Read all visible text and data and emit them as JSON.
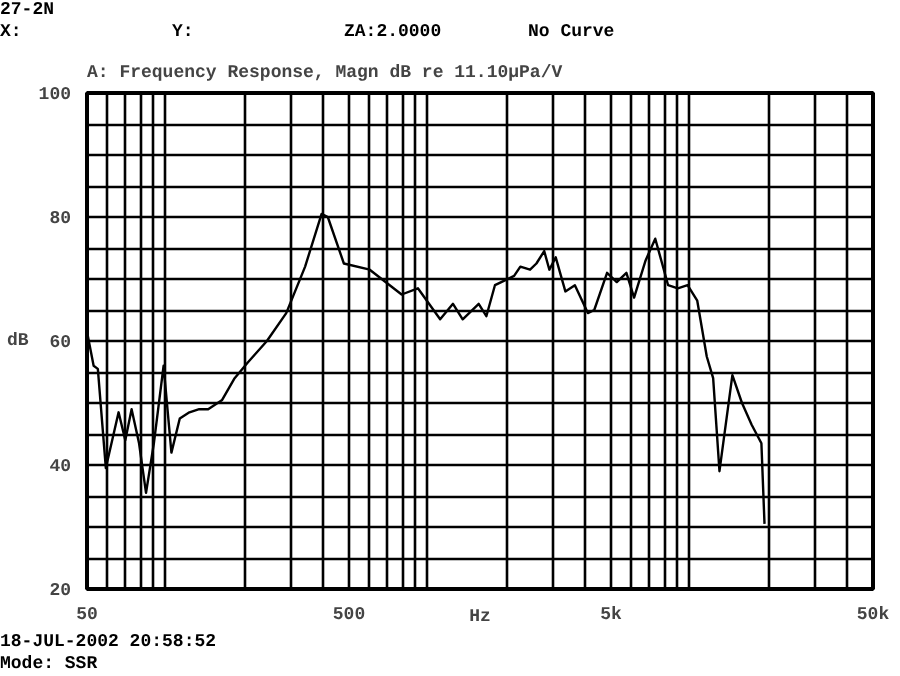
{
  "chart_data": {
    "type": "line",
    "title": "A: Frequency Response, Magn dB re 11.10μPa/V",
    "xlabel": "Hz",
    "ylabel": "dB",
    "annotations": [
      "27-2N",
      "X:",
      "Y:",
      "ZA:2.0000",
      "No Curve",
      "18-JUL-2002 20:58:52",
      "Mode: SSR"
    ],
    "log": "x",
    "grid": true,
    "marker": "none",
    "line_style": "solid",
    "xlim": [
      50,
      50000
    ],
    "ylim": [
      20,
      100
    ],
    "xticks": [
      50,
      {
        "value": 60,
        "label": null
      },
      {
        "value": 70,
        "label": null
      },
      {
        "value": 80,
        "label": null
      },
      {
        "value": 90,
        "label": null
      },
      {
        "value": 100,
        "label": null
      },
      {
        "value": 200,
        "label": null
      },
      {
        "value": 300,
        "label": null
      },
      {
        "value": 400,
        "label": null
      },
      500,
      {
        "value": 600,
        "label": null
      },
      {
        "value": 700,
        "label": null
      },
      {
        "value": 800,
        "label": null
      },
      {
        "value": 900,
        "label": null
      },
      {
        "value": 1000,
        "label": null
      },
      {
        "value": 2000,
        "label": null
      },
      {
        "value": 3000,
        "label": null
      },
      {
        "value": 4000,
        "label": null
      },
      {
        "value": 5000,
        "label": "5k"
      },
      {
        "value": 6000,
        "label": null
      },
      {
        "value": 7000,
        "label": null
      },
      {
        "value": 8000,
        "label": null
      },
      {
        "value": 9000,
        "label": null
      },
      {
        "value": 10000,
        "label": null
      },
      {
        "value": 20000,
        "label": null
      },
      {
        "value": 30000,
        "label": null
      },
      {
        "value": 40000,
        "label": null
      },
      {
        "value": 50000,
        "label": "50k"
      }
    ],
    "yticks": [
      20,
      {
        "value": 25,
        "label": null
      },
      {
        "value": 30,
        "label": null
      },
      {
        "value": 35,
        "label": null
      },
      40,
      {
        "value": 45,
        "label": null
      },
      {
        "value": 50,
        "label": null
      },
      {
        "value": 55,
        "label": null
      },
      60,
      {
        "value": 65,
        "label": null
      },
      {
        "value": 70,
        "label": null
      },
      {
        "value": 75,
        "label": null
      },
      80,
      {
        "value": 85,
        "label": null
      },
      {
        "value": 90,
        "label": null
      },
      {
        "value": 95,
        "label": null
      },
      100
    ],
    "x": [
      50,
      53,
      55,
      59,
      66,
      70,
      74,
      79,
      84,
      90,
      98,
      105,
      113,
      123,
      134,
      145,
      164,
      183,
      205,
      243,
      288,
      340,
      393,
      415,
      478,
      600,
      794,
      916,
      1114,
      1247,
      1358,
      1563,
      1672,
      1803,
      1906,
      2134,
      2254,
      2455,
      2596,
      2780,
      2909,
      3076,
      3348,
      3640,
      4080,
      4316,
      4830,
      5260,
      5725,
      6125,
      6777,
      7377,
      8260,
      8995,
      9800,
      10670,
      11600,
      12270,
      12970,
      14530,
      15810,
      17210,
      18750,
      19270
    ],
    "series": [
      {
        "color": "#000000",
        "values": [
          61.5,
          56,
          55.5,
          39.5,
          48.5,
          44,
          49,
          43.5,
          35.5,
          43.5,
          56,
          42,
          47.5,
          48.5,
          49,
          49,
          50.5,
          54,
          56.5,
          60,
          64.5,
          72,
          80.5,
          80,
          72.5,
          71.5,
          67.5,
          68.5,
          63.5,
          66,
          63.5,
          66,
          64,
          69,
          69.5,
          70.5,
          72,
          71.5,
          72.5,
          74.5,
          71.5,
          73.5,
          68,
          69,
          64.5,
          65,
          71,
          69.5,
          71,
          67,
          73,
          76.5,
          69,
          68.5,
          69,
          66.5,
          57.5,
          54,
          39,
          54.5,
          50,
          46.5,
          43.5,
          30.5
        ]
      }
    ]
  }
}
